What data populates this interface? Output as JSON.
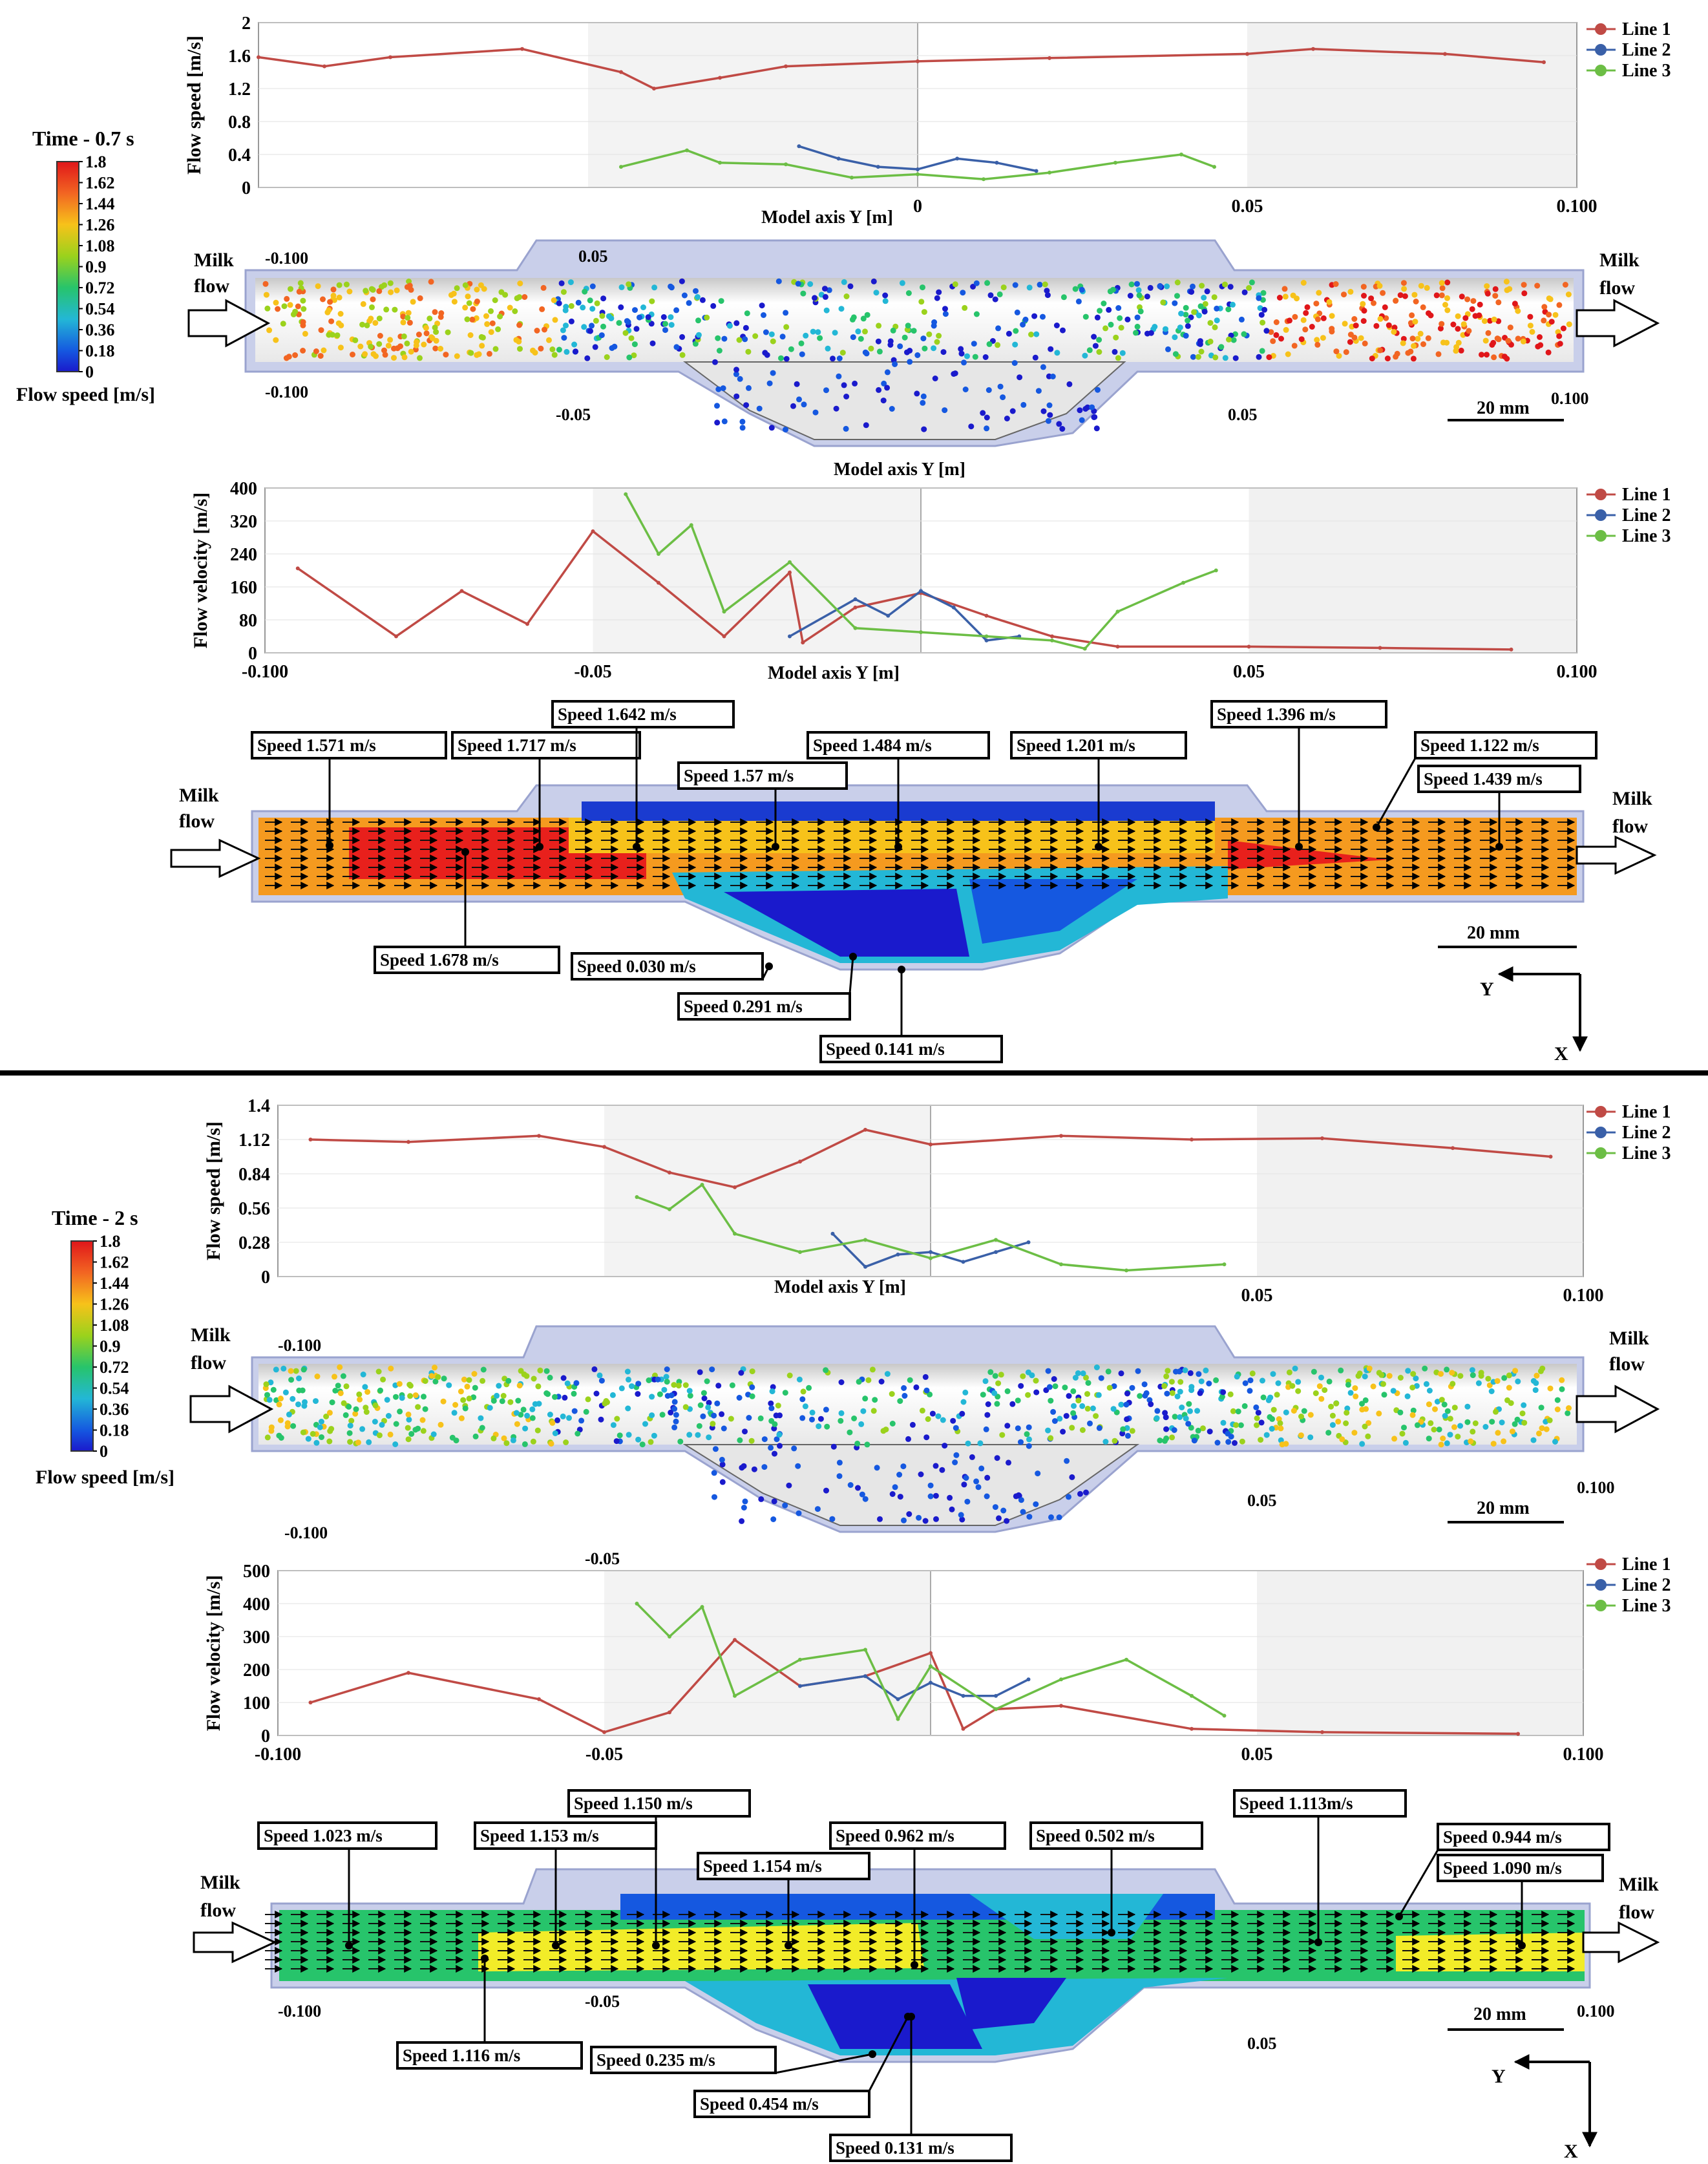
{
  "panels": [
    {
      "time_label": "Time - 0.7 s",
      "colorbar": {
        "ticks": [
          "1.8",
          "1.62",
          "1.44",
          "1.26",
          "1.08",
          "0.9",
          "0.72",
          "0.54",
          "0.36",
          "0.18",
          "0"
        ],
        "title": "Flow speed [m/s]"
      },
      "milk_flow_left": [
        "Milk",
        "flow"
      ],
      "milk_flow_right": [
        "Milk",
        "flow"
      ],
      "scale_bar": "20 mm",
      "particle_axis_labels": [
        "-0.100",
        "-0.100",
        "-0.05",
        "0.05",
        "0.05",
        "0.100"
      ],
      "particle_axis_title": "Model axis Y [m]",
      "speeds": [
        "Speed 1.571 m/s",
        "Speed 1.717 m/s",
        "Speed 1.642 m/s",
        "Speed 1.57 m/s",
        "Speed 1.484 m/s",
        "Speed 1.201 m/s",
        "Speed 1.396 m/s",
        "Speed 1.122 m/s",
        "Speed 1.439 m/s",
        "Speed 1.678 m/s",
        "Speed 0.030 m/s",
        "Speed 0.291 m/s",
        "Speed 0.141 m/s"
      ],
      "axes": {
        "y": "Y",
        "x": "X"
      }
    },
    {
      "time_label": "Time - 2 s",
      "colorbar": {
        "ticks": [
          "1.8",
          "1.62",
          "1.44",
          "1.26",
          "1.08",
          "0.9",
          "0.72",
          "0.54",
          "0.36",
          "0.18",
          "0"
        ],
        "title": "Flow speed [m/s]"
      },
      "milk_flow_left": [
        "Milk",
        "flow"
      ],
      "milk_flow_right": [
        "Milk",
        "flow"
      ],
      "scale_bar": "20 mm",
      "particle_axis_labels": [
        "-0.100",
        "-0.100",
        "-0.05",
        "0.05",
        "0.100"
      ],
      "speeds": [
        "Speed 1.023 m/s",
        "Speed 1.153 m/s",
        "Speed 1.150 m/s",
        "Speed 1.154 m/s",
        "Speed 0.962 m/s",
        "Speed 0.502 m/s",
        "Speed 1.113m/s",
        "Speed 0.944 m/s",
        "Speed 1.090 m/s",
        "Speed 1.116 m/s",
        "Speed 0.235 m/s",
        "Speed 0.454 m/s",
        "Speed 0.131 m/s"
      ],
      "axes": {
        "y": "Y",
        "x": "X"
      }
    }
  ],
  "chart_data": [
    {
      "type": "line",
      "title": "",
      "ylabel": "Flow speed [m/s]",
      "xlabel": "Model axis Y [m]",
      "xlim": [
        -0.1,
        0.1
      ],
      "ylim": [
        0,
        2
      ],
      "yticks": [
        "2",
        "1.6",
        "1.2",
        "0.8",
        "0.4",
        "0"
      ],
      "xticks": [
        "0",
        "0.05",
        "0.100"
      ],
      "legend": [
        "Line 1",
        "Line 2",
        "Line 3"
      ],
      "series": [
        {
          "name": "Line 1",
          "color": "#c04a45",
          "x": [
            -0.1,
            -0.09,
            -0.08,
            -0.06,
            -0.045,
            -0.04,
            -0.03,
            -0.02,
            0,
            0.02,
            0.05,
            0.06,
            0.08,
            0.095
          ],
          "y": [
            1.58,
            1.47,
            1.58,
            1.68,
            1.4,
            1.2,
            1.33,
            1.47,
            1.53,
            1.57,
            1.62,
            1.68,
            1.62,
            1.52
          ]
        },
        {
          "name": "Line 2",
          "color": "#3a60a8",
          "x": [
            -0.018,
            -0.012,
            -0.006,
            0,
            0.006,
            0.012,
            0.018
          ],
          "y": [
            0.5,
            0.35,
            0.25,
            0.22,
            0.35,
            0.3,
            0.2
          ]
        },
        {
          "name": "Line 3",
          "color": "#6cbe45",
          "x": [
            -0.045,
            -0.035,
            -0.03,
            -0.02,
            -0.01,
            0,
            0.01,
            0.02,
            0.03,
            0.04,
            0.045
          ],
          "y": [
            0.25,
            0.45,
            0.3,
            0.28,
            0.12,
            0.16,
            0.1,
            0.18,
            0.3,
            0.4,
            0.25
          ]
        }
      ]
    },
    {
      "type": "line",
      "title": "",
      "ylabel": "Flow velocity [m/s]",
      "xlabel": "Model axis Y [m]",
      "xlim": [
        -0.1,
        0.1
      ],
      "ylim": [
        0,
        400
      ],
      "yticks": [
        "400",
        "320",
        "240",
        "160",
        "80",
        "0"
      ],
      "xticks": [
        "-0.100",
        "-0.05",
        "0.05",
        "0.100"
      ],
      "legend": [
        "Line 1",
        "Line 2",
        "Line 3"
      ],
      "series": [
        {
          "name": "Line 1",
          "color": "#c04a45",
          "x": [
            -0.095,
            -0.08,
            -0.07,
            -0.06,
            -0.05,
            -0.04,
            -0.03,
            -0.02,
            -0.018,
            -0.01,
            0,
            0.01,
            0.02,
            0.03,
            0.05,
            0.07,
            0.09
          ],
          "y": [
            205,
            40,
            150,
            70,
            295,
            170,
            40,
            195,
            25,
            110,
            145,
            90,
            40,
            15,
            15,
            12,
            8
          ]
        },
        {
          "name": "Line 2",
          "color": "#3a60a8",
          "x": [
            -0.02,
            -0.01,
            -0.005,
            0,
            0.005,
            0.01,
            0.015
          ],
          "y": [
            40,
            130,
            90,
            150,
            110,
            30,
            40
          ]
        },
        {
          "name": "Line 3",
          "color": "#6cbe45",
          "x": [
            -0.045,
            -0.04,
            -0.035,
            -0.03,
            -0.02,
            -0.01,
            0,
            0.01,
            0.02,
            0.025,
            0.03,
            0.04,
            0.045
          ],
          "y": [
            385,
            240,
            310,
            100,
            220,
            60,
            50,
            40,
            30,
            10,
            100,
            170,
            200
          ]
        }
      ]
    },
    {
      "type": "line",
      "title": "",
      "ylabel": "Flow speed [m/s]",
      "xlabel": "Model axis Y [m]",
      "xlim": [
        -0.1,
        0.1
      ],
      "ylim": [
        0,
        1.4
      ],
      "yticks": [
        "1.4",
        "1.12",
        "0.84",
        "0.56",
        "0.28",
        "0"
      ],
      "xticks": [
        "0.05",
        "0.100"
      ],
      "legend": [
        "Line 1",
        "Line 2",
        "Line 3"
      ],
      "series": [
        {
          "name": "Line 1",
          "color": "#c04a45",
          "x": [
            -0.095,
            -0.08,
            -0.06,
            -0.05,
            -0.04,
            -0.03,
            -0.02,
            -0.01,
            0,
            0.02,
            0.04,
            0.06,
            0.08,
            0.095
          ],
          "y": [
            1.12,
            1.1,
            1.15,
            1.06,
            0.85,
            0.73,
            0.94,
            1.2,
            1.08,
            1.15,
            1.12,
            1.13,
            1.05,
            0.98
          ]
        },
        {
          "name": "Line 2",
          "color": "#3a60a8",
          "x": [
            -0.015,
            -0.01,
            -0.005,
            0,
            0.005,
            0.01,
            0.015
          ],
          "y": [
            0.35,
            0.08,
            0.18,
            0.2,
            0.12,
            0.2,
            0.28
          ]
        },
        {
          "name": "Line 3",
          "color": "#6cbe45",
          "x": [
            -0.045,
            -0.04,
            -0.035,
            -0.03,
            -0.02,
            -0.01,
            0,
            0.01,
            0.02,
            0.03,
            0.045
          ],
          "y": [
            0.65,
            0.55,
            0.75,
            0.35,
            0.2,
            0.3,
            0.15,
            0.3,
            0.1,
            0.05,
            0.1
          ]
        }
      ]
    },
    {
      "type": "line",
      "title": "",
      "ylabel": "Flow velocity [m/s]",
      "xlabel": "",
      "xlim": [
        -0.1,
        0.1
      ],
      "ylim": [
        0,
        500
      ],
      "yticks": [
        "500",
        "400",
        "300",
        "200",
        "100",
        "0"
      ],
      "xticks": [
        "-0.100",
        "-0.05",
        "0.05",
        "0.100"
      ],
      "legend": [
        "Line 1",
        "Line 2",
        "Line 3"
      ],
      "series": [
        {
          "name": "Line 1",
          "color": "#c04a45",
          "x": [
            -0.095,
            -0.08,
            -0.06,
            -0.05,
            -0.04,
            -0.03,
            -0.02,
            -0.01,
            0,
            0.005,
            0.01,
            0.02,
            0.04,
            0.06,
            0.09
          ],
          "y": [
            100,
            190,
            110,
            10,
            70,
            290,
            150,
            180,
            250,
            20,
            80,
            90,
            20,
            10,
            5
          ]
        },
        {
          "name": "Line 2",
          "color": "#3a60a8",
          "x": [
            -0.02,
            -0.01,
            -0.005,
            0,
            0.005,
            0.01,
            0.015
          ],
          "y": [
            150,
            180,
            110,
            160,
            120,
            120,
            170
          ]
        },
        {
          "name": "Line 3",
          "color": "#6cbe45",
          "x": [
            -0.045,
            -0.04,
            -0.035,
            -0.03,
            -0.02,
            -0.01,
            -0.005,
            0,
            0.01,
            0.02,
            0.03,
            0.04,
            0.045
          ],
          "y": [
            400,
            300,
            390,
            120,
            230,
            260,
            50,
            210,
            80,
            170,
            230,
            120,
            60
          ]
        }
      ]
    }
  ]
}
